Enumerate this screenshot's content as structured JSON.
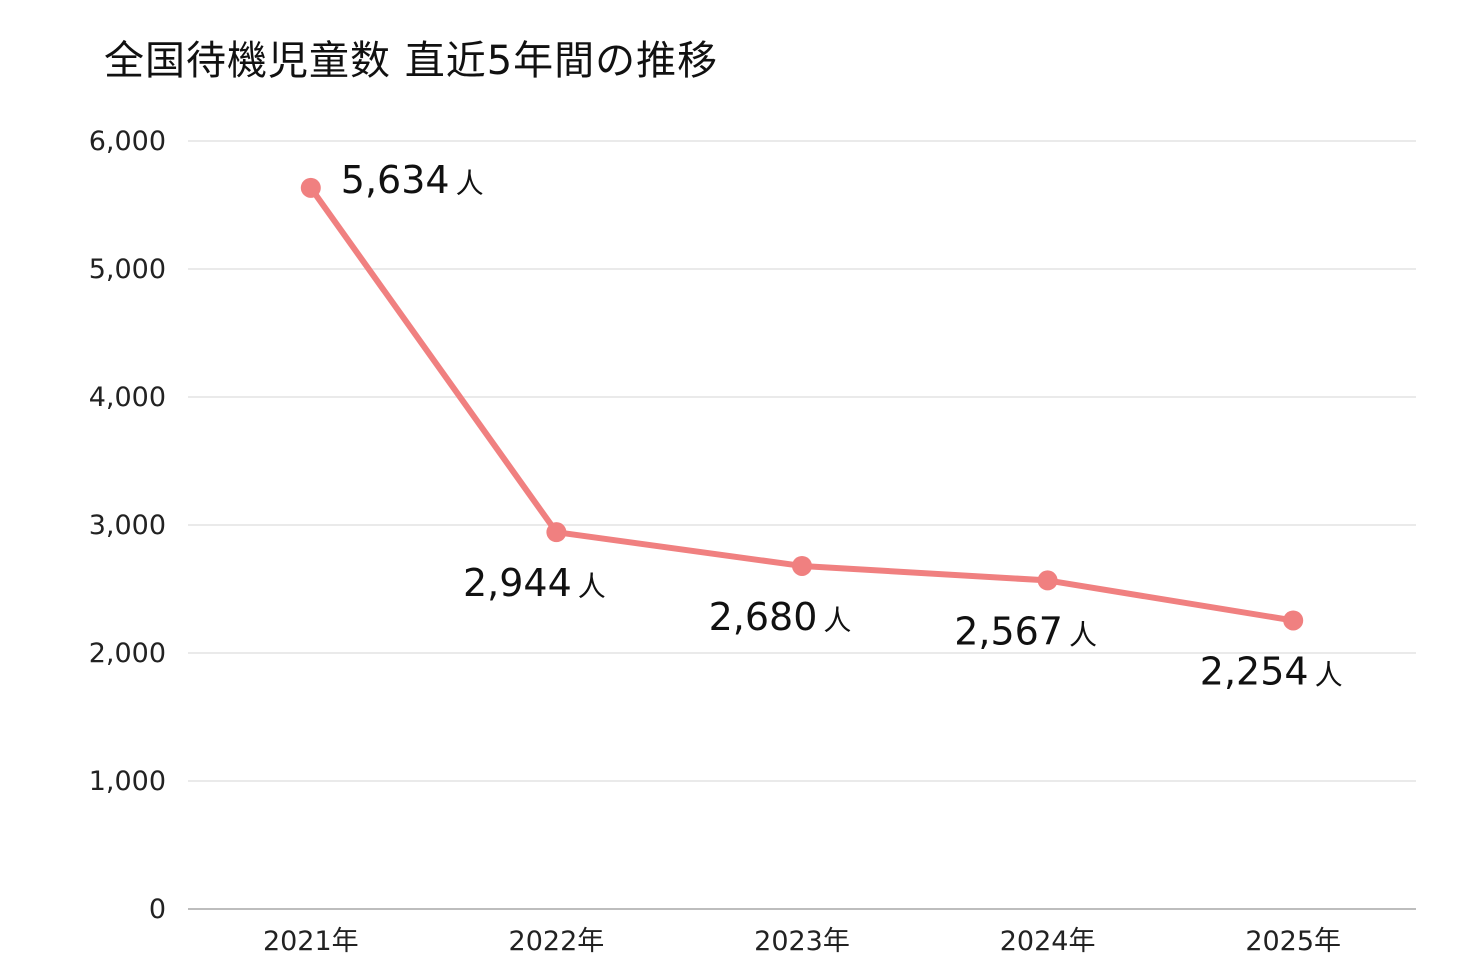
{
  "chart_data": {
    "type": "line",
    "title": "全国待機児童数 直近5年間の推移",
    "categories": [
      "2021年",
      "2022年",
      "2023年",
      "2024年",
      "2025年"
    ],
    "series": [
      {
        "values": [
          5634,
          2944,
          2680,
          2567,
          2254
        ],
        "color": "#f08080"
      }
    ],
    "data_labels": [
      "5,634",
      "2,944",
      "2,680",
      "2,567",
      "2,254"
    ],
    "data_unit": "人",
    "yticks": [
      "0",
      "1,000",
      "2,000",
      "3,000",
      "4,000",
      "5,000",
      "6,000"
    ],
    "ylim": [
      0,
      6000
    ],
    "grid": true,
    "legend": "none"
  }
}
